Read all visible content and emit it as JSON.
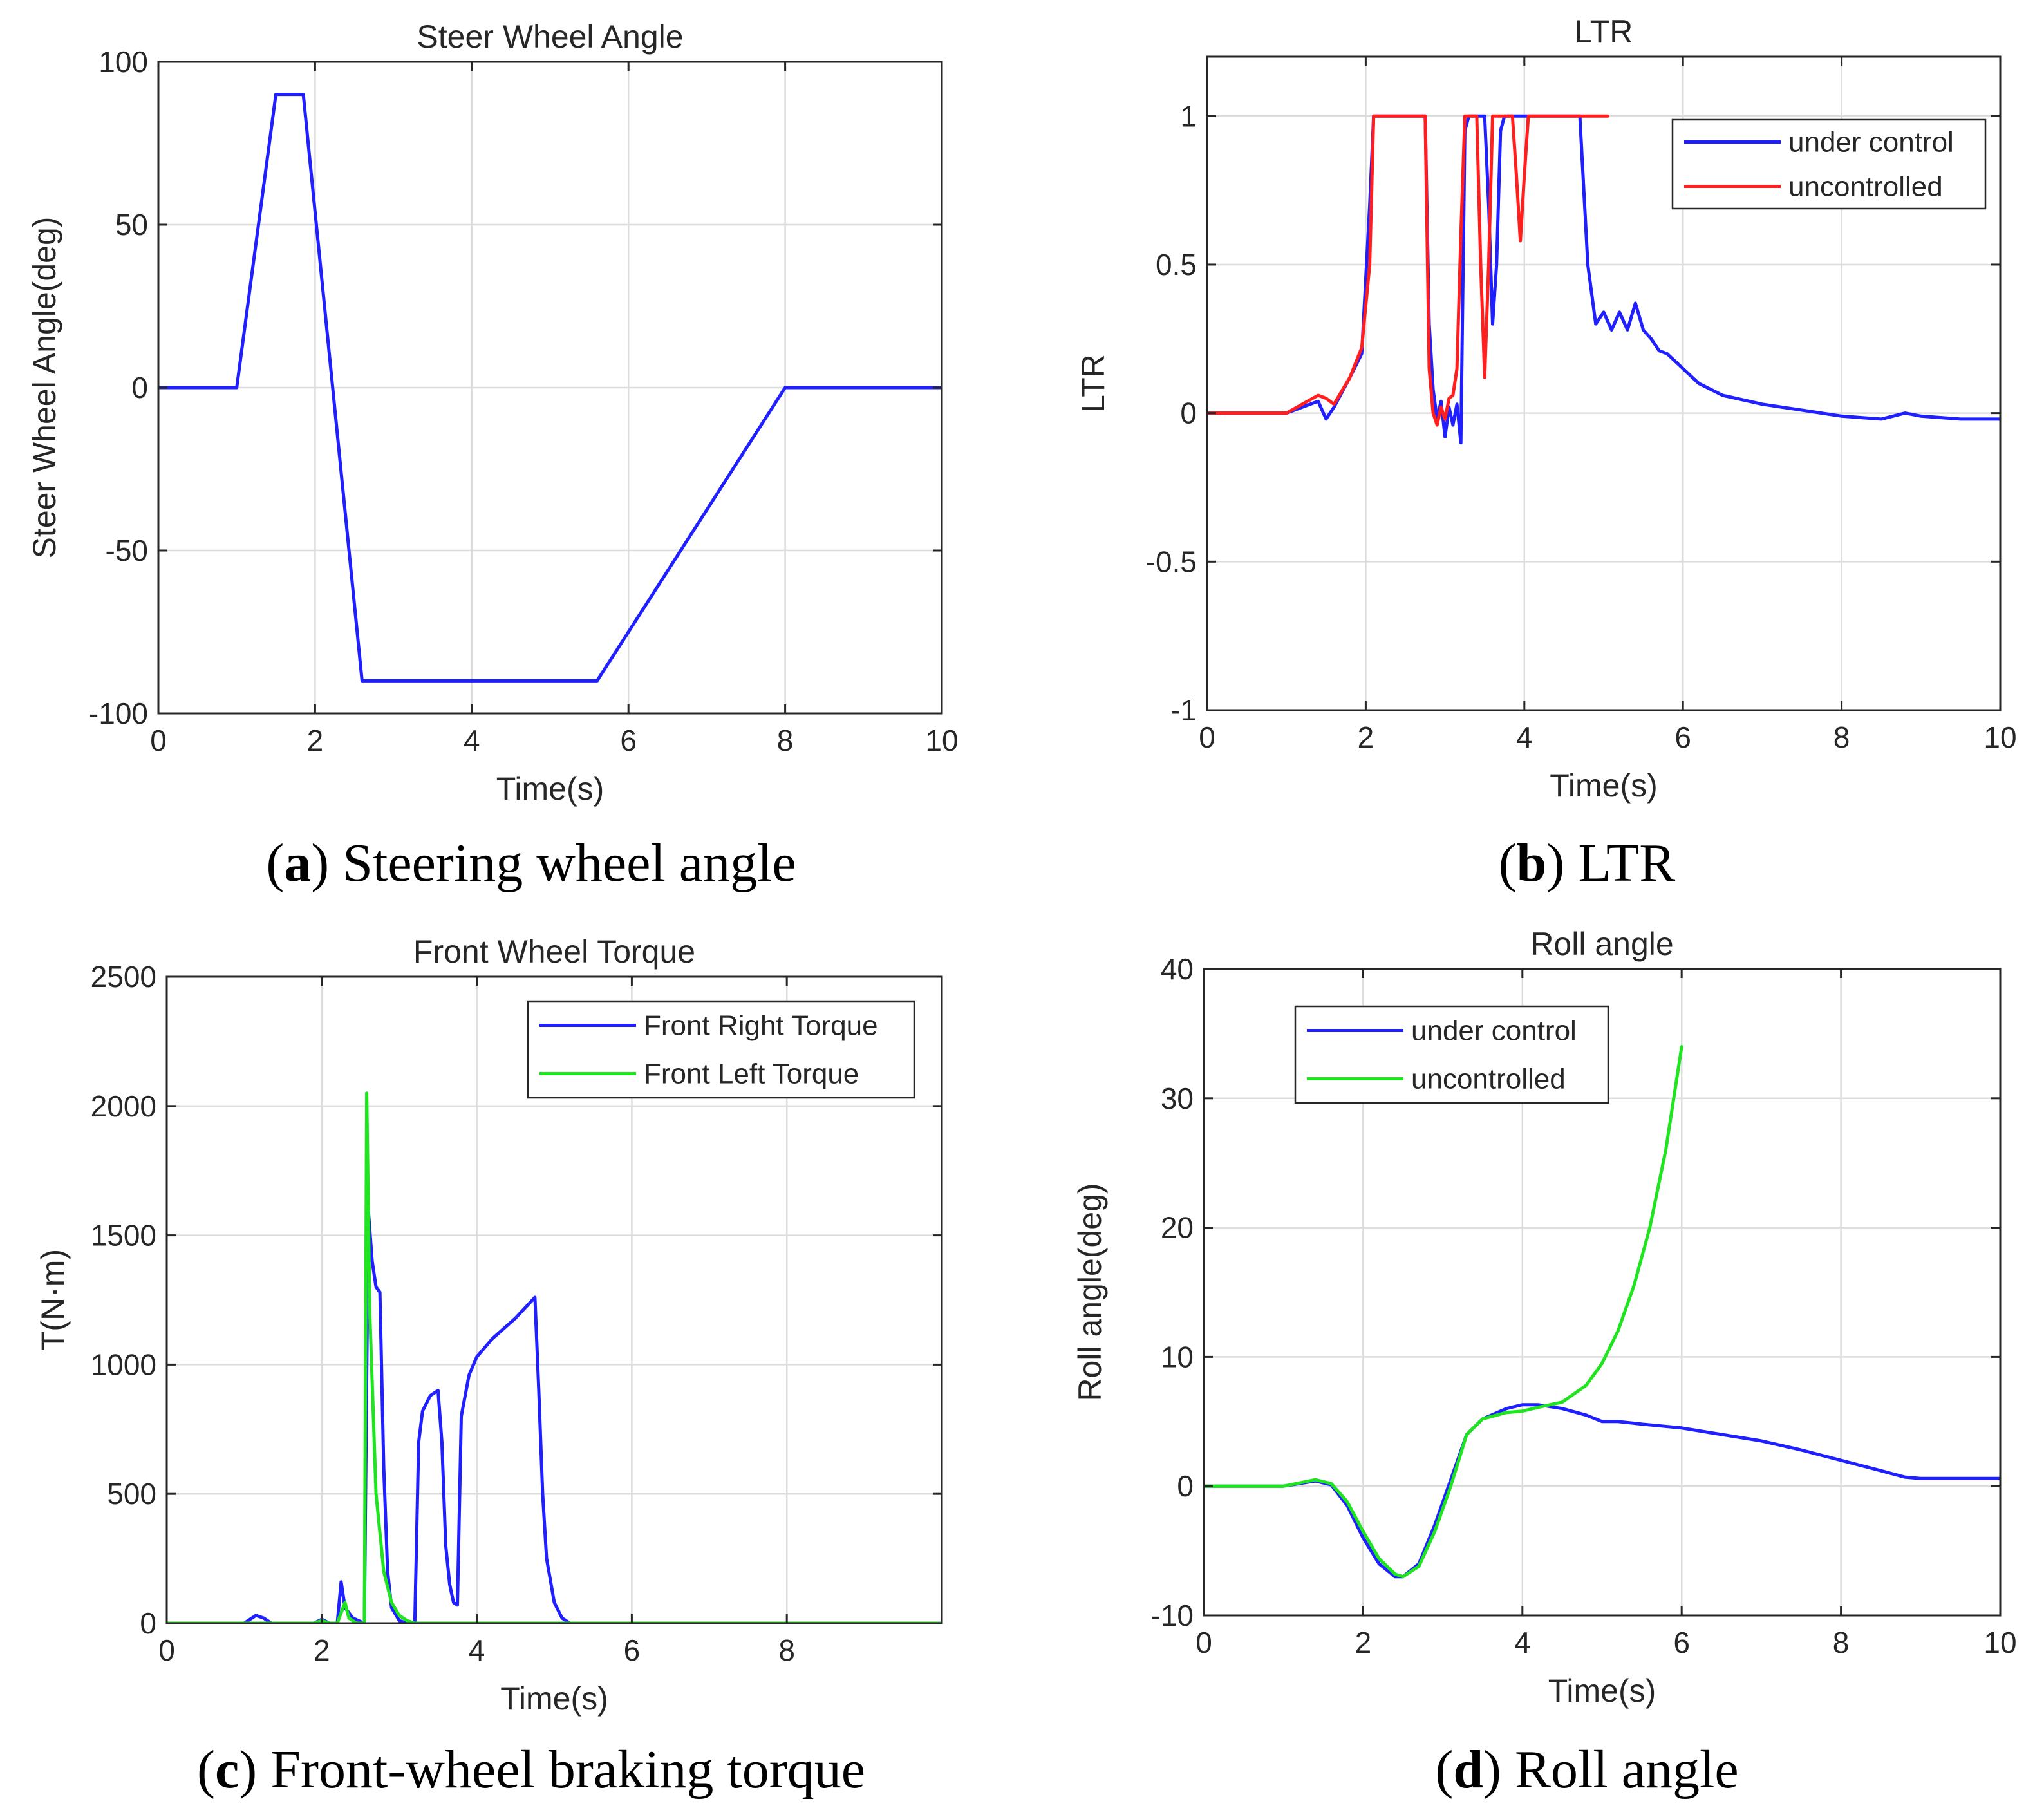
{
  "colors": {
    "blue": "#1f1fff",
    "red": "#ff1f1f",
    "green": "#1fe41f",
    "axis": "#262626",
    "grid": "#dcdcdc"
  },
  "chart_data": [
    {
      "id": "a",
      "type": "line",
      "title": "Steer Wheel Angle",
      "xlabel": "Time(s)",
      "ylabel": "Steer Wheel Angle(deg)",
      "xlim": [
        0,
        10
      ],
      "ylim": [
        -100,
        100
      ],
      "xticks": [
        0,
        2,
        4,
        6,
        8,
        10
      ],
      "yticks": [
        -100,
        -50,
        0,
        50,
        100
      ],
      "grid": true,
      "legend": null,
      "caption_letter": "a",
      "caption_text": "Steering wheel angle",
      "series": [
        {
          "name": "Steer Wheel Angle",
          "color": "#1f1fff",
          "x": [
            0,
            1.0,
            1.5,
            1.85,
            2.6,
            5.6,
            8.0,
            10
          ],
          "y": [
            0,
            0,
            90,
            90,
            -90,
            -90,
            0,
            0
          ]
        }
      ]
    },
    {
      "id": "b",
      "type": "line",
      "title": "LTR",
      "xlabel": "Time(s)",
      "ylabel": "LTR",
      "xlim": [
        0,
        10
      ],
      "ylim": [
        -1,
        1.2
      ],
      "xticks": [
        0,
        2,
        4,
        6,
        8,
        10
      ],
      "yticks": [
        -1,
        -0.5,
        0,
        0.5,
        1
      ],
      "grid": true,
      "legend": "top-right",
      "caption_letter": "b",
      "caption_text": "LTR",
      "series": [
        {
          "name": "under control",
          "color": "#1f1fff",
          "x": [
            0,
            1.0,
            1.2,
            1.4,
            1.5,
            1.6,
            1.8,
            1.95,
            2.05,
            2.1,
            2.75,
            2.8,
            2.85,
            2.9,
            2.95,
            3.0,
            3.05,
            3.1,
            3.15,
            3.2,
            3.25,
            3.3,
            3.5,
            3.55,
            3.6,
            3.65,
            3.7,
            3.75,
            3.8,
            4.7,
            4.75,
            4.8,
            4.9,
            5.0,
            5.1,
            5.2,
            5.3,
            5.4,
            5.5,
            5.6,
            5.7,
            5.8,
            6.0,
            6.2,
            6.5,
            7.0,
            7.5,
            8.0,
            8.5,
            8.8,
            9.0,
            9.5,
            10
          ],
          "y": [
            0,
            0,
            0.02,
            0.04,
            -0.02,
            0.02,
            0.12,
            0.2,
            0.7,
            1.0,
            1.0,
            0.3,
            0.08,
            -0.02,
            0.04,
            -0.08,
            0.02,
            -0.04,
            0.03,
            -0.1,
            0.95,
            1.0,
            1.0,
            0.7,
            0.3,
            0.5,
            0.95,
            1.0,
            1.0,
            1.0,
            0.75,
            0.5,
            0.3,
            0.34,
            0.28,
            0.34,
            0.28,
            0.37,
            0.28,
            0.25,
            0.21,
            0.2,
            0.15,
            0.1,
            0.06,
            0.03,
            0.01,
            -0.01,
            -0.02,
            0.0,
            -0.01,
            -0.02,
            -0.02
          ]
        },
        {
          "name": "uncontrolled",
          "color": "#ff1f1f",
          "x": [
            0,
            1.0,
            1.2,
            1.4,
            1.5,
            1.6,
            1.8,
            1.95,
            2.05,
            2.1,
            2.75,
            2.8,
            2.85,
            2.9,
            2.95,
            3.0,
            3.05,
            3.1,
            3.15,
            3.2,
            3.25,
            3.3,
            3.4,
            3.45,
            3.5,
            3.55,
            3.6,
            3.85,
            3.9,
            3.95,
            4.0,
            4.05,
            5.05
          ],
          "y": [
            0,
            0,
            0.03,
            0.06,
            0.05,
            0.03,
            0.12,
            0.22,
            0.5,
            1.0,
            1.0,
            0.15,
            0.0,
            -0.04,
            0.02,
            -0.02,
            0.05,
            0.06,
            0.15,
            0.6,
            1.0,
            1.0,
            1.0,
            0.5,
            0.12,
            0.5,
            1.0,
            1.0,
            0.8,
            0.58,
            0.8,
            1.0,
            1.0
          ]
        }
      ]
    },
    {
      "id": "c",
      "type": "line",
      "title": "Front Wheel Torque",
      "xlabel": "Time(s)",
      "ylabel": "T(N·m)",
      "xlim": [
        0,
        10
      ],
      "ylim": [
        0,
        2500
      ],
      "xticks": [
        0,
        2,
        4,
        6,
        8
      ],
      "yticks": [
        0,
        500,
        1000,
        1500,
        2000,
        2500
      ],
      "grid": true,
      "legend": "top-right",
      "caption_letter": "c",
      "caption_text": "Front-wheel braking torque",
      "series": [
        {
          "name": "Front Right Torque",
          "color": "#1f1fff",
          "x": [
            0,
            1.0,
            1.1,
            1.15,
            1.25,
            1.35,
            1.9,
            2.0,
            2.1,
            2.2,
            2.25,
            2.3,
            2.35,
            2.4,
            2.55,
            2.6,
            2.65,
            2.7,
            2.75,
            2.8,
            2.85,
            2.9,
            3.0,
            3.1,
            3.2,
            3.25,
            3.3,
            3.4,
            3.5,
            3.55,
            3.6,
            3.65,
            3.7,
            3.75,
            3.8,
            3.9,
            4.0,
            4.2,
            4.5,
            4.75,
            4.8,
            4.85,
            4.9,
            5.0,
            5.1,
            5.2,
            10
          ],
          "y": [
            0,
            0,
            20,
            30,
            20,
            0,
            0,
            15,
            0,
            0,
            160,
            60,
            40,
            20,
            0,
            1600,
            1400,
            1300,
            1280,
            600,
            200,
            60,
            10,
            0,
            0,
            700,
            820,
            880,
            900,
            700,
            300,
            150,
            80,
            70,
            800,
            960,
            1030,
            1100,
            1180,
            1260,
            900,
            500,
            250,
            80,
            20,
            0,
            0
          ]
        },
        {
          "name": "Front Left Torque",
          "color": "#1fe41f",
          "x": [
            0,
            1.9,
            2.0,
            2.1,
            2.2,
            2.3,
            2.35,
            2.45,
            2.55,
            2.58,
            2.62,
            2.7,
            2.8,
            2.9,
            3.0,
            3.1,
            3.2,
            10
          ],
          "y": [
            0,
            0,
            10,
            0,
            0,
            80,
            20,
            0,
            0,
            2050,
            1200,
            500,
            200,
            80,
            30,
            10,
            0,
            0
          ]
        }
      ]
    },
    {
      "id": "d",
      "type": "line",
      "title": "Roll angle",
      "xlabel": "Time(s)",
      "ylabel": "Roll angle(deg)",
      "xlim": [
        0,
        10
      ],
      "ylim": [
        -10,
        40
      ],
      "xticks": [
        0,
        2,
        4,
        6,
        8,
        10
      ],
      "yticks": [
        -10,
        0,
        10,
        20,
        30,
        40
      ],
      "grid": true,
      "legend": "top-left",
      "caption_letter": "d",
      "caption_text": "Roll angle",
      "series": [
        {
          "name": "under control",
          "color": "#1f1fff",
          "x": [
            0,
            1.0,
            1.4,
            1.6,
            1.8,
            2.0,
            2.2,
            2.4,
            2.5,
            2.7,
            2.9,
            3.1,
            3.3,
            3.5,
            3.8,
            4.0,
            4.2,
            4.5,
            4.8,
            5.0,
            5.2,
            5.5,
            6.0,
            6.5,
            7.0,
            7.5,
            8.0,
            8.5,
            8.8,
            9.0,
            9.5,
            10
          ],
          "y": [
            0,
            0,
            0.4,
            0.1,
            -1.5,
            -4.0,
            -6.0,
            -7.0,
            -7.0,
            -6.0,
            -3.0,
            0.5,
            4.0,
            5.2,
            6.0,
            6.3,
            6.3,
            6.0,
            5.5,
            5.0,
            5.0,
            4.8,
            4.5,
            4.0,
            3.5,
            2.8,
            2.0,
            1.2,
            0.7,
            0.6,
            0.6,
            0.6
          ]
        },
        {
          "name": "uncontrolled",
          "color": "#1fe41f",
          "x": [
            0,
            1.0,
            1.4,
            1.6,
            1.8,
            2.0,
            2.2,
            2.4,
            2.5,
            2.7,
            2.9,
            3.1,
            3.3,
            3.5,
            3.8,
            4.0,
            4.2,
            4.5,
            4.8,
            5.0,
            5.2,
            5.4,
            5.6,
            5.8,
            6.0
          ],
          "y": [
            0,
            0,
            0.5,
            0.2,
            -1.2,
            -3.5,
            -5.6,
            -6.8,
            -7.0,
            -6.2,
            -3.5,
            0.0,
            4.0,
            5.2,
            5.7,
            5.8,
            6.1,
            6.5,
            7.8,
            9.5,
            12.0,
            15.5,
            20.0,
            26.0,
            34.0
          ]
        }
      ]
    }
  ]
}
